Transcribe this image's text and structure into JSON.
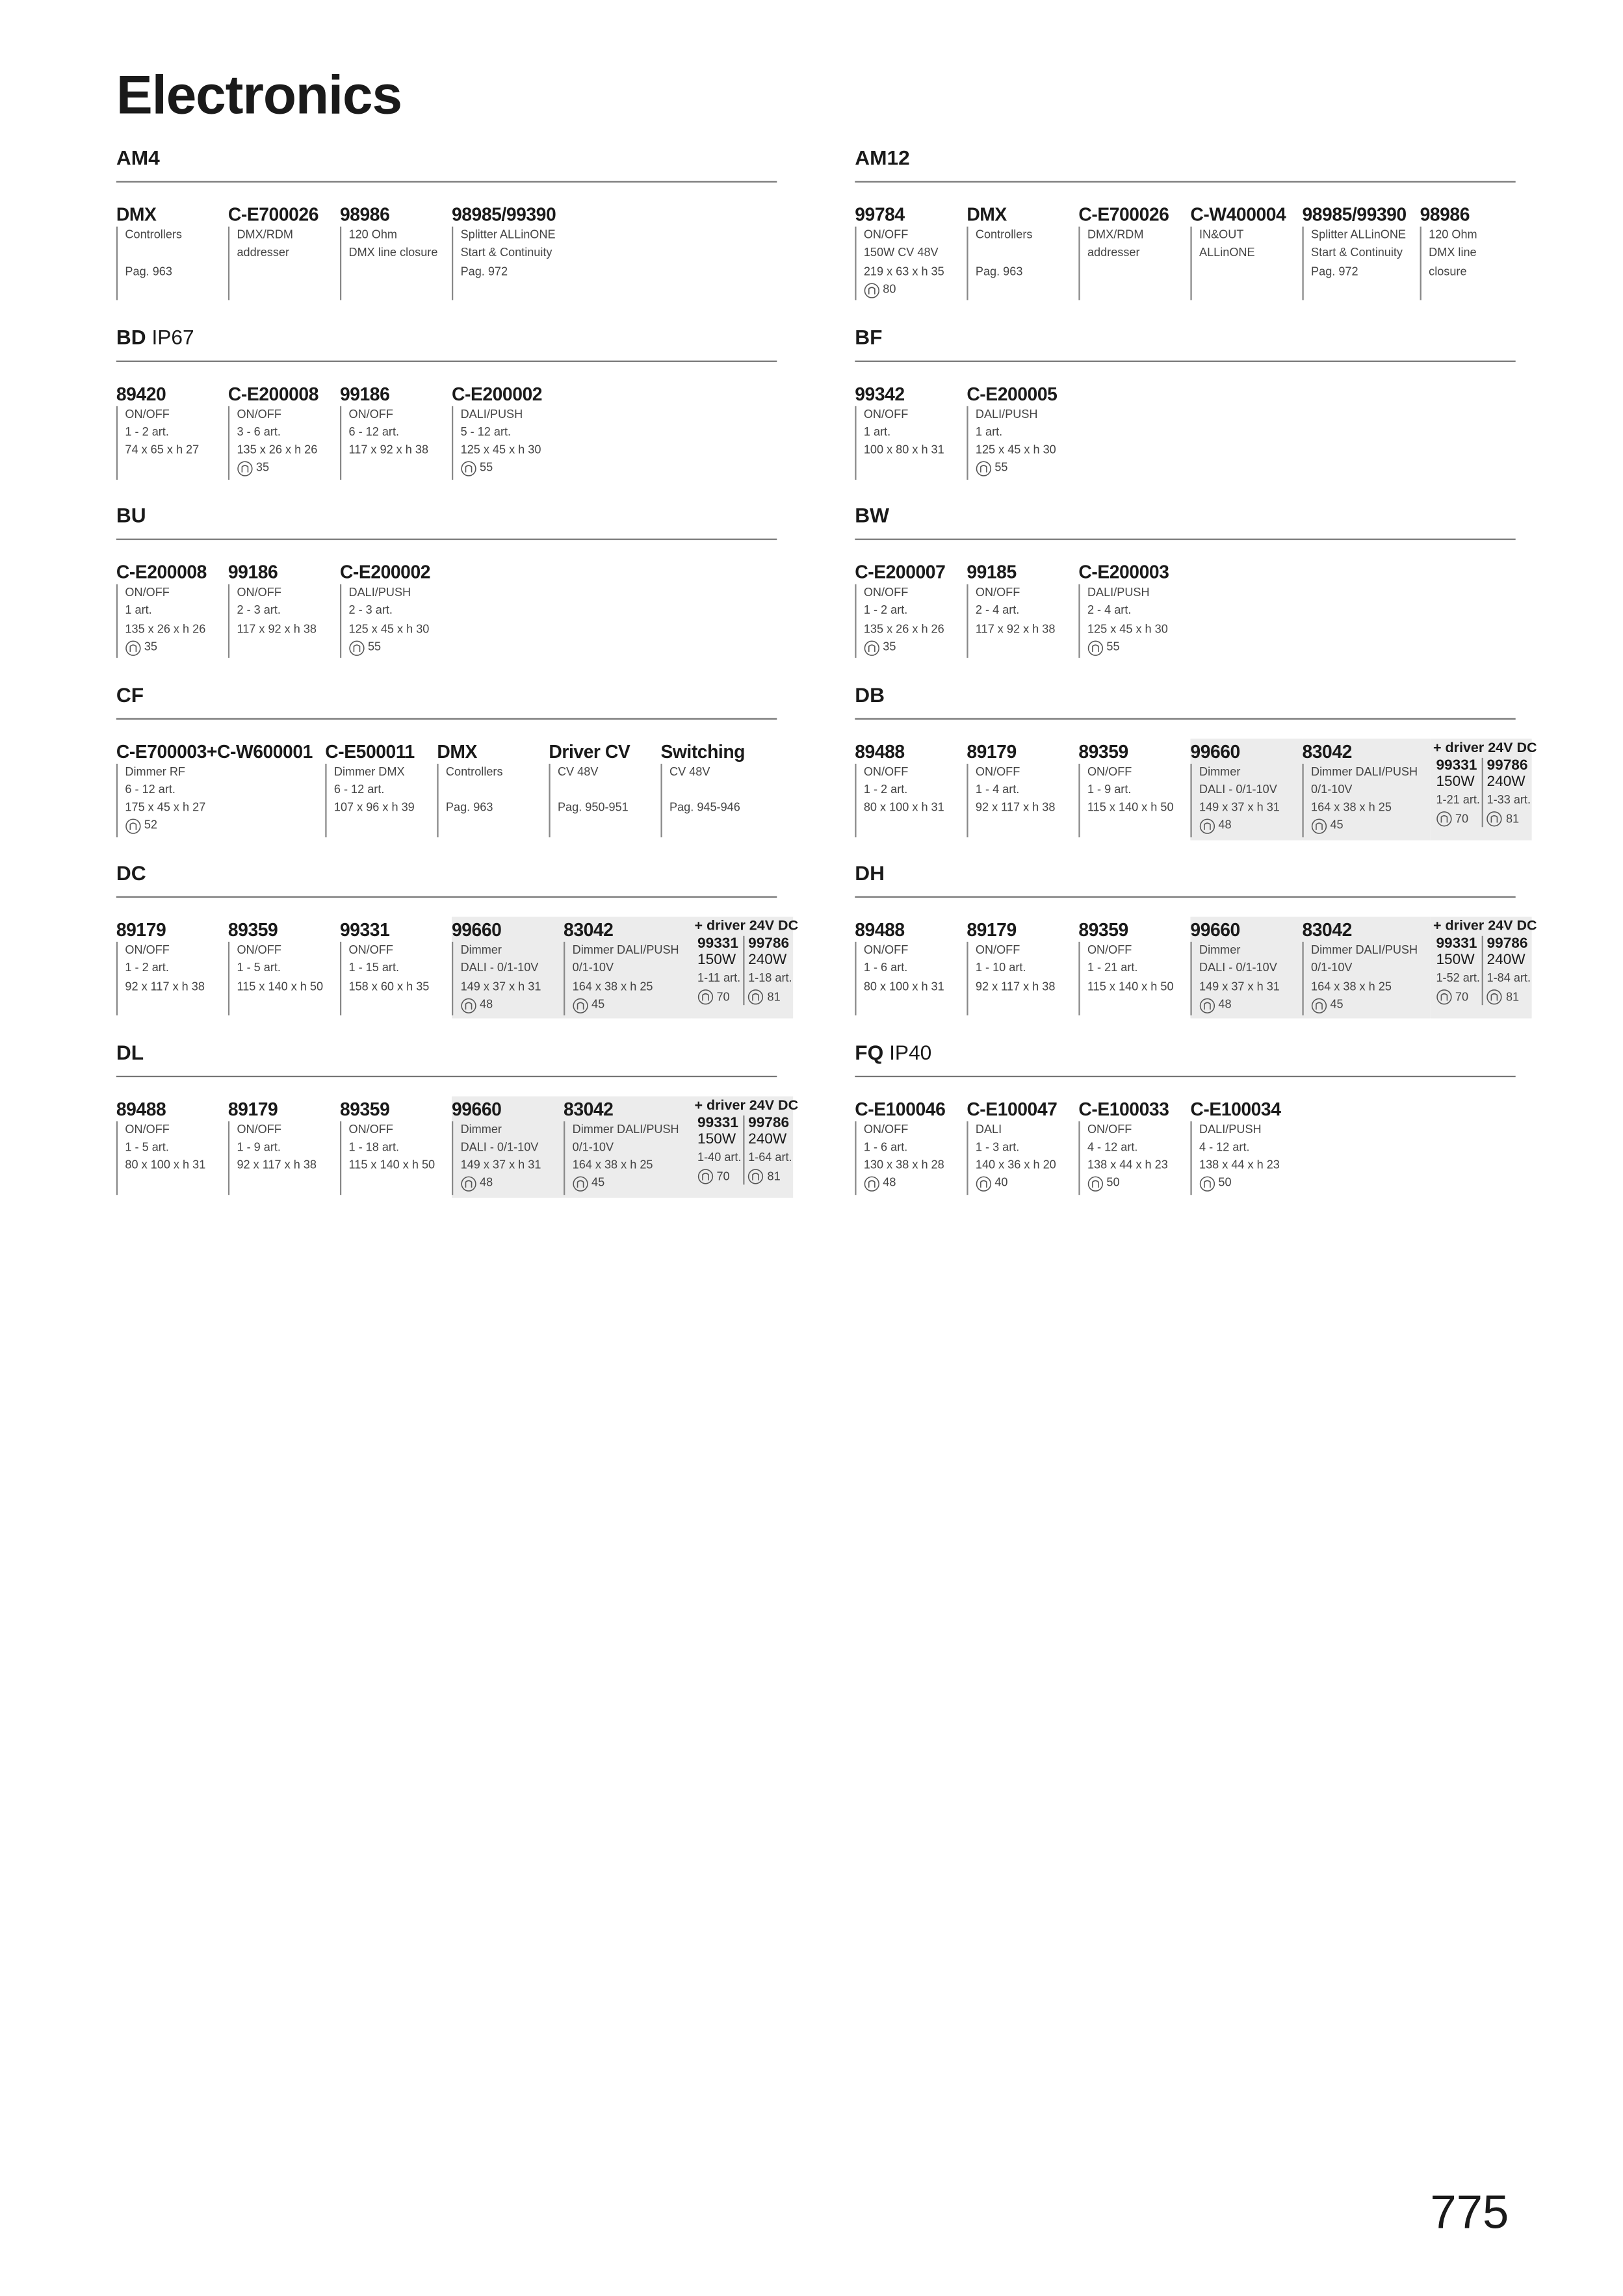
{
  "title": "Electronics",
  "page_number": "775",
  "sections": [
    {
      "name": "AM4",
      "items": [
        {
          "code": "DMX",
          "lines": [
            "Controllers"
          ],
          "ref": "Pag. 963"
        },
        {
          "code": "C-E700026",
          "lines": [
            "DMX/RDM",
            "addresser"
          ]
        },
        {
          "code": "98986",
          "lines": [
            "120 Ohm",
            "DMX line closure"
          ]
        },
        {
          "code": "98985/99390",
          "lines": [
            "Splitter ALLinONE",
            "Start & Continuity",
            "Pag. 972"
          ]
        }
      ]
    },
    {
      "name": "AM12",
      "items": [
        {
          "code": "99784",
          "lines": [
            "ON/OFF",
            "150W CV 48V",
            "219 x 63 x h 35"
          ],
          "ip": 80
        },
        {
          "code": "DMX",
          "lines": [
            "Controllers"
          ],
          "ref": "Pag. 963"
        },
        {
          "code": "C-E700026",
          "lines": [
            "DMX/RDM",
            "addresser"
          ]
        },
        {
          "code": "C-W400004",
          "lines": [
            "IN&OUT",
            "ALLinONE"
          ]
        },
        {
          "code": "98985/99390",
          "lines": [
            "Splitter ALLinONE",
            "Start & Continuity",
            "Pag. 972"
          ]
        },
        {
          "code": "98986",
          "lines": [
            "120 Ohm",
            "DMX line",
            "closure"
          ]
        }
      ]
    },
    {
      "name": "BD",
      "rating": "IP67",
      "items": [
        {
          "code": "89420",
          "lines": [
            "ON/OFF",
            "1 - 2 art.",
            "74 x 65 x h 27"
          ]
        },
        {
          "code": "C-E200008",
          "lines": [
            "ON/OFF",
            "3 - 6 art.",
            "135 x 26 x h 26"
          ],
          "ip": 35
        },
        {
          "code": "99186",
          "lines": [
            "ON/OFF",
            "6 - 12 art.",
            "117 x 92 x h 38"
          ]
        },
        {
          "code": "C-E200002",
          "lines": [
            "DALI/PUSH",
            "5 - 12 art.",
            "125 x 45 x h 30"
          ],
          "ip": 55
        }
      ]
    },
    {
      "name": "BF",
      "items": [
        {
          "code": "99342",
          "lines": [
            "ON/OFF",
            "1 art.",
            "100 x 80 x h 31"
          ]
        },
        {
          "code": "C-E200005",
          "lines": [
            "DALI/PUSH",
            "1 art.",
            "125 x 45 x h 30"
          ],
          "ip": 55
        }
      ]
    },
    {
      "name": "BU",
      "items": [
        {
          "code": "C-E200008",
          "lines": [
            "ON/OFF",
            "1 art.",
            "135 x 26 x h 26"
          ],
          "ip": 35
        },
        {
          "code": "99186",
          "lines": [
            "ON/OFF",
            "2 - 3 art.",
            "117 x 92 x h 38"
          ]
        },
        {
          "code": "C-E200002",
          "lines": [
            "DALI/PUSH",
            "2 - 3 art.",
            "125 x 45 x h 30"
          ],
          "ip": 55
        }
      ]
    },
    {
      "name": "BW",
      "items": [
        {
          "code": "C-E200007",
          "lines": [
            "ON/OFF",
            "1 - 2 art.",
            "135 x 26 x h 26"
          ],
          "ip": 35
        },
        {
          "code": "99185",
          "lines": [
            "ON/OFF",
            "2 - 4 art.",
            "117 x 92 x h 38"
          ]
        },
        {
          "code": "C-E200003",
          "lines": [
            "DALI/PUSH",
            "2 - 4 art.",
            "125 x 45 x h 30"
          ],
          "ip": 55
        }
      ]
    },
    {
      "name": "CF",
      "items": [
        {
          "code": "C-E700003+C-W600001",
          "lines": [
            "Dimmer RF",
            "6 - 12 art.",
            "175 x 45 x h 27"
          ],
          "ip": 52
        },
        {
          "code": "C-E500011",
          "lines": [
            "Dimmer DMX",
            "6 - 12 art.",
            "107 x 96 x h 39"
          ]
        },
        {
          "code": "DMX",
          "lines": [
            "Controllers"
          ],
          "ref": "Pag. 963"
        },
        {
          "code": "Driver CV",
          "lines": [
            "CV 48V"
          ],
          "ref": "Pag. 950-951"
        },
        {
          "code": "Switching",
          "lines": [
            "CV 48V"
          ],
          "ref": "Pag. 945-946"
        }
      ]
    },
    {
      "name": "DB",
      "items": [
        {
          "code": "89488",
          "lines": [
            "ON/OFF",
            "1 - 2 art.",
            "80 x 100 x h 31"
          ]
        },
        {
          "code": "89179",
          "lines": [
            "ON/OFF",
            "1 - 4 art.",
            "92 x 117 x h 38"
          ]
        },
        {
          "code": "89359",
          "lines": [
            "ON/OFF",
            "1 - 9 art.",
            "115 x 140 x h 50"
          ]
        },
        {
          "code": "99660",
          "lines": [
            "Dimmer",
            "DALI - 0/1-10V",
            "149 x 37 x h 31"
          ],
          "ip": 48,
          "highlight": true
        },
        {
          "code": "83042",
          "lines": [
            "Dimmer DALI/PUSH",
            "0/1-10V",
            "164 x 38 x h 25"
          ],
          "ip": 45,
          "highlight": true
        }
      ],
      "driver": {
        "title": "+ driver 24V DC",
        "items": [
          {
            "code": "99331",
            "power": "150W",
            "range": "1-21 art.",
            "ip": 70
          },
          {
            "code": "99786",
            "power": "240W",
            "range": "1-33 art.",
            "ip": 81
          }
        ]
      }
    },
    {
      "name": "DC",
      "items": [
        {
          "code": "89179",
          "lines": [
            "ON/OFF",
            "1 - 2 art.",
            "92 x 117 x h 38"
          ]
        },
        {
          "code": "89359",
          "lines": [
            "ON/OFF",
            "1 - 5 art.",
            "115 x 140 x h 50"
          ]
        },
        {
          "code": "99331",
          "lines": [
            "ON/OFF",
            "1 - 15 art.",
            "158 x 60 x h 35"
          ]
        },
        {
          "code": "99660",
          "lines": [
            "Dimmer",
            "DALI - 0/1-10V",
            "149 x 37 x h 31"
          ],
          "ip": 48,
          "highlight": true
        },
        {
          "code": "83042",
          "lines": [
            "Dimmer DALI/PUSH",
            "0/1-10V",
            "164 x 38 x h 25"
          ],
          "ip": 45,
          "highlight": true
        }
      ],
      "driver": {
        "title": "+ driver 24V DC",
        "items": [
          {
            "code": "99331",
            "power": "150W",
            "range": "1-11 art.",
            "ip": 70
          },
          {
            "code": "99786",
            "power": "240W",
            "range": "1-18 art.",
            "ip": 81
          }
        ]
      }
    },
    {
      "name": "DH",
      "items": [
        {
          "code": "89488",
          "lines": [
            "ON/OFF",
            "1 - 6 art.",
            "80 x 100 x h 31"
          ]
        },
        {
          "code": "89179",
          "lines": [
            "ON/OFF",
            "1 - 10 art.",
            "92 x 117 x h 38"
          ]
        },
        {
          "code": "89359",
          "lines": [
            "ON/OFF",
            "1 - 21 art.",
            "115 x 140 x h 50"
          ]
        },
        {
          "code": "99660",
          "lines": [
            "Dimmer",
            "DALI - 0/1-10V",
            "149 x 37 x h 31"
          ],
          "ip": 48,
          "highlight": true
        },
        {
          "code": "83042",
          "lines": [
            "Dimmer DALI/PUSH",
            "0/1-10V",
            "164 x 38 x h 25"
          ],
          "ip": 45,
          "highlight": true
        }
      ],
      "driver": {
        "title": "+ driver 24V DC",
        "items": [
          {
            "code": "99331",
            "power": "150W",
            "range": "1-52 art.",
            "ip": 70
          },
          {
            "code": "99786",
            "power": "240W",
            "range": "1-84 art.",
            "ip": 81
          }
        ]
      }
    },
    {
      "name": "DL",
      "items": [
        {
          "code": "89488",
          "lines": [
            "ON/OFF",
            "1 - 5 art.",
            "80 x 100 x h 31"
          ]
        },
        {
          "code": "89179",
          "lines": [
            "ON/OFF",
            "1 - 9 art.",
            "92 x 117 x h 38"
          ]
        },
        {
          "code": "89359",
          "lines": [
            "ON/OFF",
            "1 - 18 art.",
            "115 x 140 x h 50"
          ]
        },
        {
          "code": "99660",
          "lines": [
            "Dimmer",
            "DALI - 0/1-10V",
            "149 x 37 x h 31"
          ],
          "ip": 48,
          "highlight": true
        },
        {
          "code": "83042",
          "lines": [
            "Dimmer DALI/PUSH",
            "0/1-10V",
            "164 x 38 x h 25"
          ],
          "ip": 45,
          "highlight": true
        }
      ],
      "driver": {
        "title": "+ driver 24V DC",
        "items": [
          {
            "code": "99331",
            "power": "150W",
            "range": "1-40 art.",
            "ip": 70
          },
          {
            "code": "99786",
            "power": "240W",
            "range": "1-64 art.",
            "ip": 81
          }
        ]
      }
    },
    {
      "name": "FQ",
      "rating": "IP40",
      "items": [
        {
          "code": "C-E100046",
          "lines": [
            "ON/OFF",
            "1 - 6 art.",
            "130 x 38 x h 28"
          ],
          "ip": 48
        },
        {
          "code": "C-E100047",
          "lines": [
            "DALI",
            "1 - 3 art.",
            "140 x 36 x h 20"
          ],
          "ip": 40
        },
        {
          "code": "C-E100033",
          "lines": [
            "ON/OFF",
            "4 - 12 art.",
            "138 x 44 x h 23"
          ],
          "ip": 50
        },
        {
          "code": "C-E100034",
          "lines": [
            "DALI/PUSH",
            "4 - 12 art.",
            "138 x 44 x h 23"
          ],
          "ip": 50
        }
      ]
    }
  ]
}
